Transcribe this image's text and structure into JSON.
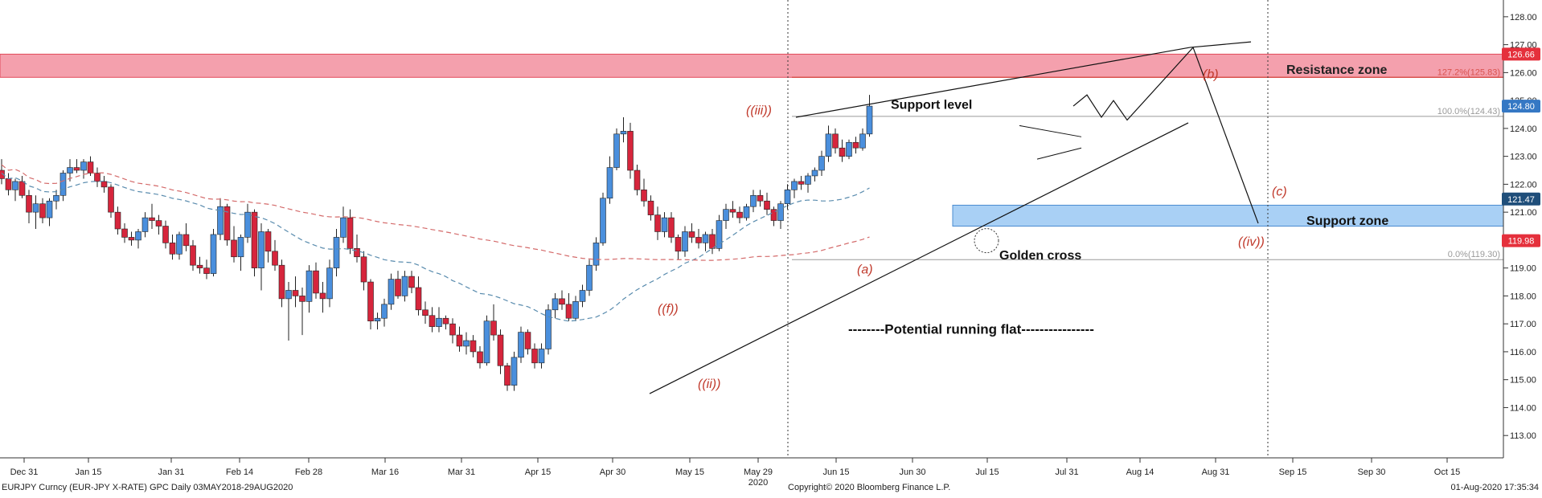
{
  "chart_data": {
    "type": "candlestick",
    "instrument": "EURJPY Curncy (EUR-JPY X-RATE) GPC  Daily 03MAY2018-29AUG2020",
    "copyright": "Copyright© 2020 Bloomberg Finance L.P.",
    "timestamp": "01-Aug-2020 17:35:34",
    "year_label": "2020",
    "x_ticks": [
      "Dec 31",
      "Jan 15",
      "Jan 31",
      "Feb 14",
      "Feb 28",
      "Mar 16",
      "Mar 31",
      "Apr 15",
      "Apr 30",
      "May 15",
      "May 29",
      "Jun 15",
      "Jun 30",
      "Jul 15",
      "Jul 31",
      "Aug 14",
      "Aug 31",
      "Sep 15",
      "Sep 30",
      "Oct 15"
    ],
    "y_ticks": [
      "113.00",
      "114.00",
      "115.00",
      "116.00",
      "117.00",
      "118.00",
      "119.00",
      "120.00",
      "121.00",
      "122.00",
      "123.00",
      "124.00",
      "125.00",
      "126.00",
      "127.00",
      "128.00"
    ],
    "ylim": [
      112.2,
      128.6
    ],
    "price_tags": [
      {
        "value": 126.66,
        "label": "126.66",
        "color": "#e5303c"
      },
      {
        "value": 124.8,
        "label": "124.80",
        "color": "#3578c4"
      },
      {
        "value": 121.47,
        "label": "121.47",
        "color": "#1f4e7a"
      },
      {
        "value": 119.98,
        "label": "119.98",
        "color": "#e5303c"
      }
    ],
    "zones": [
      {
        "name": "Resistance zone",
        "from": 125.83,
        "to": 126.66,
        "color": "#f4a0ad"
      },
      {
        "name": "Support zone",
        "from": 120.5,
        "to": 121.25,
        "color": "#a9d0f5"
      }
    ],
    "fib_levels": [
      {
        "label": "127.2%(125.83)",
        "value": 125.83,
        "color": "#d9534f"
      },
      {
        "label": "100.0%(124.43)",
        "value": 124.43,
        "color": "#9a9a9a"
      },
      {
        "label": "0.0%(119.30)",
        "value": 119.3,
        "color": "#9a9a9a"
      }
    ],
    "annotations": {
      "support_level": "Support level",
      "golden_cross": "Golden cross",
      "running_flat": "--------Potential running flat----------------",
      "wave_labels": [
        "((iii))",
        "((ii))",
        "((f))",
        "(a)",
        "(b)",
        "(c)",
        "((iv))"
      ]
    },
    "candles": [
      [
        122.5,
        122.9,
        122.0,
        122.2
      ],
      [
        122.2,
        122.4,
        121.6,
        121.8
      ],
      [
        121.8,
        122.2,
        121.4,
        122.1
      ],
      [
        122.1,
        122.3,
        121.5,
        121.6
      ],
      [
        121.6,
        121.8,
        120.6,
        121.0
      ],
      [
        121.0,
        121.6,
        120.4,
        121.3
      ],
      [
        121.3,
        121.5,
        120.6,
        120.8
      ],
      [
        120.8,
        121.5,
        120.5,
        121.4
      ],
      [
        121.4,
        121.8,
        121.1,
        121.6
      ],
      [
        121.6,
        122.5,
        121.4,
        122.4
      ],
      [
        122.4,
        122.9,
        122.1,
        122.6
      ],
      [
        122.6,
        122.9,
        122.4,
        122.5
      ],
      [
        122.5,
        122.9,
        122.2,
        122.8
      ],
      [
        122.8,
        123.0,
        122.3,
        122.4
      ],
      [
        122.4,
        122.6,
        121.9,
        122.1
      ],
      [
        122.1,
        122.3,
        121.7,
        121.9
      ],
      [
        121.9,
        122.0,
        120.8,
        121.0
      ],
      [
        121.0,
        121.2,
        120.2,
        120.4
      ],
      [
        120.4,
        120.6,
        119.9,
        120.1
      ],
      [
        120.1,
        120.3,
        119.8,
        120.0
      ],
      [
        120.0,
        120.4,
        119.7,
        120.3
      ],
      [
        120.3,
        121.0,
        120.1,
        120.8
      ],
      [
        120.8,
        121.3,
        120.4,
        120.7
      ],
      [
        120.7,
        120.9,
        120.2,
        120.5
      ],
      [
        120.5,
        120.7,
        119.7,
        119.9
      ],
      [
        119.9,
        120.2,
        119.3,
        119.5
      ],
      [
        119.5,
        120.3,
        119.3,
        120.2
      ],
      [
        120.2,
        120.6,
        119.6,
        119.8
      ],
      [
        119.8,
        120.0,
        118.9,
        119.1
      ],
      [
        119.1,
        119.4,
        118.8,
        119.0
      ],
      [
        119.0,
        119.3,
        118.6,
        118.8
      ],
      [
        118.8,
        120.4,
        118.7,
        120.2
      ],
      [
        120.2,
        121.5,
        120.0,
        121.2
      ],
      [
        121.2,
        121.3,
        119.8,
        120.0
      ],
      [
        120.0,
        120.5,
        119.2,
        119.4
      ],
      [
        119.4,
        120.2,
        118.9,
        120.1
      ],
      [
        120.1,
        121.3,
        119.9,
        121.0
      ],
      [
        121.0,
        121.1,
        118.7,
        119.0
      ],
      [
        119.0,
        120.6,
        118.2,
        120.3
      ],
      [
        120.3,
        120.4,
        119.2,
        119.6
      ],
      [
        119.6,
        120.0,
        118.9,
        119.1
      ],
      [
        119.1,
        119.3,
        117.6,
        117.9
      ],
      [
        117.9,
        118.5,
        116.4,
        118.2
      ],
      [
        118.2,
        118.7,
        117.6,
        118.0
      ],
      [
        118.0,
        118.3,
        116.6,
        117.8
      ],
      [
        117.8,
        119.1,
        117.4,
        118.9
      ],
      [
        118.9,
        119.2,
        117.9,
        118.1
      ],
      [
        118.1,
        118.5,
        117.4,
        117.9
      ],
      [
        117.9,
        119.3,
        117.6,
        119.0
      ],
      [
        119.0,
        120.4,
        118.7,
        120.1
      ],
      [
        120.1,
        121.2,
        119.9,
        120.8
      ],
      [
        120.8,
        121.1,
        119.5,
        119.7
      ],
      [
        119.7,
        120.2,
        119.2,
        119.4
      ],
      [
        119.4,
        119.6,
        118.2,
        118.5
      ],
      [
        118.5,
        118.6,
        116.8,
        117.1
      ],
      [
        117.1,
        117.4,
        116.8,
        117.2
      ],
      [
        117.2,
        117.9,
        116.9,
        117.7
      ],
      [
        117.7,
        118.8,
        117.5,
        118.6
      ],
      [
        118.6,
        118.9,
        117.9,
        118.0
      ],
      [
        118.0,
        118.9,
        117.8,
        118.7
      ],
      [
        118.7,
        118.9,
        118.1,
        118.3
      ],
      [
        118.3,
        118.7,
        117.3,
        117.5
      ],
      [
        117.5,
        117.8,
        117.0,
        117.3
      ],
      [
        117.3,
        117.6,
        116.7,
        116.9
      ],
      [
        116.9,
        117.6,
        116.7,
        117.2
      ],
      [
        117.2,
        117.3,
        116.8,
        117.0
      ],
      [
        117.0,
        117.2,
        116.3,
        116.6
      ],
      [
        116.6,
        116.9,
        116.0,
        116.2
      ],
      [
        116.2,
        116.7,
        115.9,
        116.4
      ],
      [
        116.4,
        116.6,
        115.8,
        116.0
      ],
      [
        116.0,
        116.2,
        115.4,
        115.6
      ],
      [
        115.6,
        117.3,
        115.5,
        117.1
      ],
      [
        117.1,
        117.7,
        116.4,
        116.6
      ],
      [
        116.6,
        116.8,
        115.2,
        115.5
      ],
      [
        115.5,
        115.6,
        114.6,
        114.8
      ],
      [
        114.8,
        116.0,
        114.6,
        115.8
      ],
      [
        115.8,
        116.9,
        115.6,
        116.7
      ],
      [
        116.7,
        116.8,
        115.9,
        116.1
      ],
      [
        116.1,
        116.3,
        115.4,
        115.6
      ],
      [
        115.6,
        116.3,
        115.4,
        116.1
      ],
      [
        116.1,
        117.7,
        115.9,
        117.5
      ],
      [
        117.5,
        118.1,
        117.2,
        117.9
      ],
      [
        117.9,
        118.2,
        117.5,
        117.7
      ],
      [
        117.7,
        118.1,
        117.1,
        117.2
      ],
      [
        117.2,
        118.0,
        117.1,
        117.8
      ],
      [
        117.8,
        118.4,
        117.6,
        118.2
      ],
      [
        118.2,
        119.3,
        118.0,
        119.1
      ],
      [
        119.1,
        120.1,
        118.9,
        119.9
      ],
      [
        119.9,
        121.7,
        119.8,
        121.5
      ],
      [
        121.5,
        123.0,
        121.3,
        122.6
      ],
      [
        122.6,
        124.0,
        122.5,
        123.8
      ],
      [
        123.8,
        124.4,
        123.5,
        123.9
      ],
      [
        123.9,
        124.2,
        122.2,
        122.5
      ],
      [
        122.5,
        122.7,
        121.6,
        121.8
      ],
      [
        121.8,
        122.2,
        121.2,
        121.4
      ],
      [
        121.4,
        121.6,
        120.7,
        120.9
      ],
      [
        120.9,
        121.2,
        120.0,
        120.3
      ],
      [
        120.3,
        121.0,
        120.1,
        120.8
      ],
      [
        120.8,
        121.0,
        119.9,
        120.1
      ],
      [
        120.1,
        120.2,
        119.3,
        119.6
      ],
      [
        119.6,
        120.5,
        119.4,
        120.3
      ],
      [
        120.3,
        120.6,
        119.9,
        120.1
      ],
      [
        120.1,
        120.4,
        119.7,
        119.9
      ],
      [
        119.9,
        120.3,
        119.6,
        120.2
      ],
      [
        120.2,
        120.4,
        119.5,
        119.7
      ],
      [
        119.7,
        120.9,
        119.6,
        120.7
      ],
      [
        120.7,
        121.3,
        120.4,
        121.1
      ],
      [
        121.1,
        121.4,
        120.8,
        121.0
      ],
      [
        121.0,
        121.2,
        120.6,
        120.8
      ],
      [
        120.8,
        121.3,
        120.7,
        121.2
      ],
      [
        121.2,
        121.8,
        121.0,
        121.6
      ],
      [
        121.6,
        121.8,
        121.2,
        121.4
      ],
      [
        121.4,
        121.7,
        120.9,
        121.1
      ],
      [
        121.1,
        121.2,
        120.5,
        120.7
      ],
      [
        120.7,
        121.4,
        120.4,
        121.3
      ],
      [
        121.3,
        122.0,
        121.1,
        121.8
      ],
      [
        121.8,
        122.2,
        121.5,
        122.1
      ],
      [
        122.1,
        122.3,
        121.8,
        122.0
      ],
      [
        122.0,
        122.4,
        121.7,
        122.3
      ],
      [
        122.3,
        122.6,
        122.1,
        122.5
      ],
      [
        122.5,
        123.2,
        122.3,
        123.0
      ],
      [
        123.0,
        124.1,
        122.8,
        123.8
      ],
      [
        123.8,
        124.0,
        123.1,
        123.3
      ],
      [
        123.3,
        123.6,
        122.8,
        123.0
      ],
      [
        123.0,
        123.6,
        122.9,
        123.5
      ],
      [
        123.5,
        123.7,
        123.1,
        123.3
      ],
      [
        123.3,
        124.0,
        123.2,
        123.8
      ],
      [
        123.8,
        125.2,
        123.7,
        124.8
      ]
    ]
  }
}
